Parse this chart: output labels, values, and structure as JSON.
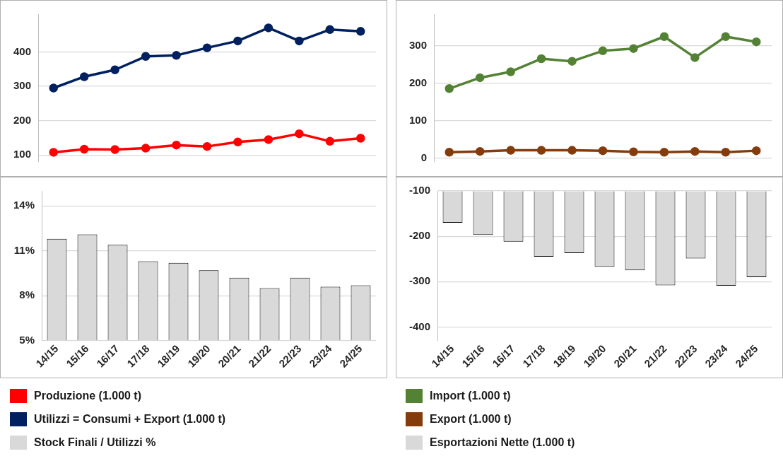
{
  "chart_data": [
    {
      "type": "line",
      "categories": [
        null,
        null,
        null,
        null,
        null,
        null,
        null,
        null,
        null,
        null,
        null
      ],
      "series": [
        {
          "name": "Produzione (1.000 t)",
          "color": "#ff0000",
          "values": [
            108,
            117,
            116,
            120,
            129,
            125,
            138,
            145,
            162,
            140,
            149
          ]
        },
        {
          "name": "Utilizzi = Consumi + Export (1.000 t)",
          "color": "#002060",
          "values": [
            295,
            328,
            348,
            387,
            390,
            412,
            432,
            470,
            432,
            465,
            460
          ]
        }
      ],
      "ylim": [
        80,
        510
      ],
      "yticks": [
        100,
        200,
        300,
        400
      ],
      "grid": "y",
      "legend": "bottom",
      "tick_labels": "y",
      "marker": "circle"
    },
    {
      "type": "line",
      "categories": [
        null,
        null,
        null,
        null,
        null,
        null,
        null,
        null,
        null,
        null,
        null
      ],
      "series": [
        {
          "name": "Import (1.000 t)",
          "color": "#548235",
          "values": [
            186,
            215,
            231,
            266,
            259,
            287,
            293,
            325,
            269,
            325,
            311
          ]
        },
        {
          "name": "Export (1.000 t)",
          "color": "#843c0c",
          "values": [
            16,
            18,
            21,
            21,
            21,
            20,
            17,
            16,
            18,
            16,
            20
          ]
        }
      ],
      "ylim": [
        -10,
        385
      ],
      "yticks": [
        0,
        100,
        200,
        300
      ],
      "grid": "y",
      "legend": "bottom",
      "tick_labels": "y",
      "marker": "circle"
    },
    {
      "type": "bar",
      "categories": [
        "14/15",
        "15/16",
        "16/17",
        "17/18",
        "18/19",
        "19/20",
        "20/21",
        "21/22",
        "22/23",
        "23/24",
        "24/25"
      ],
      "series": [
        {
          "name": "Stock Finali / Utilizzi %",
          "color": "#d9d9d9",
          "values": [
            11.8,
            12.1,
            11.4,
            10.3,
            10.2,
            9.7,
            9.2,
            8.5,
            9.2,
            8.6,
            8.7
          ]
        }
      ],
      "ylim": [
        5,
        15
      ],
      "yticks": [
        {
          "value": 5,
          "label": "5%"
        },
        {
          "value": 8,
          "label": "8%"
        },
        {
          "value": 11,
          "label": "11%"
        },
        {
          "value": 14,
          "label": "14%"
        }
      ],
      "grid": "y",
      "legend": "bottom"
    },
    {
      "type": "bar",
      "categories": [
        "14/15",
        "15/16",
        "16/17",
        "17/18",
        "18/19",
        "19/20",
        "20/21",
        "21/22",
        "22/23",
        "23/24",
        "24/25"
      ],
      "series": [
        {
          "name": "Esportazioni Nette (1.000 t)",
          "color": "#d9d9d9",
          "values": [
            -170,
            -197,
            -212,
            -245,
            -237,
            -267,
            -275,
            -308,
            -249,
            -309,
            -290
          ]
        }
      ],
      "ylim": [
        -430,
        -100
      ],
      "yticks": [
        -100,
        -200,
        -300,
        -400
      ],
      "grid": "y",
      "legend": "bottom"
    }
  ]
}
